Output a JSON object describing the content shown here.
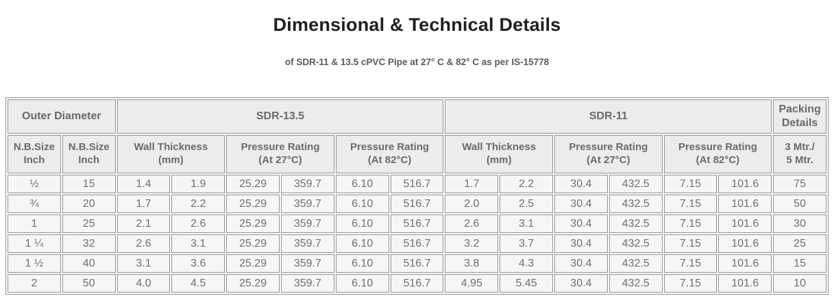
{
  "page": {
    "title": "Dimensional & Technical Details",
    "subtitle": "of SDR-11 & 13.5 cPVC Pipe at 27° C & 82° C as per IS-15778"
  },
  "colors": {
    "title_text": "#1f1f1f",
    "subtitle_text": "#595959",
    "header_bg": "#ececec",
    "cell_bg": "#f6f6f6",
    "header_text": "#6a6a6a",
    "cell_text": "#6f6f6f",
    "border": "#8f8f8f",
    "page_bg": "#ffffff"
  },
  "table": {
    "group_headers": [
      {
        "label": "Outer Diameter",
        "colspan": 2
      },
      {
        "label": "SDR-13.5",
        "colspan": 6
      },
      {
        "label": "SDR-11",
        "colspan": 6
      },
      {
        "label": "Packing\nDetails",
        "colspan": 1
      }
    ],
    "column_headers": [
      {
        "label": "N.B.Size\nInch",
        "colspan": 1
      },
      {
        "label": "N.B.Size\nInch",
        "colspan": 1
      },
      {
        "label": "Wall Thickness\n(mm)",
        "colspan": 2
      },
      {
        "label": "Pressure Rating\n(At 27°C)",
        "colspan": 2
      },
      {
        "label": "Pressure Rating\n(At 82°C)",
        "colspan": 2
      },
      {
        "label": "Wall Thickness\n(mm)",
        "colspan": 2
      },
      {
        "label": "Pressure Rating\n(At 27°C)",
        "colspan": 2
      },
      {
        "label": "Pressure Rating\n(At 82°C)",
        "colspan": 2
      },
      {
        "label": "3 Mtr./\n5 Mtr.",
        "colspan": 1
      }
    ],
    "rows": [
      [
        "½",
        "15",
        "1.4",
        "1.9",
        "25.29",
        "359.7",
        "6.10",
        "516.7",
        "1.7",
        "2.2",
        "30.4",
        "432.5",
        "7.15",
        "101.6",
        "75"
      ],
      [
        "¾",
        "20",
        "1.7",
        "2.2",
        "25.29",
        "359.7",
        "6.10",
        "516.7",
        "2.0",
        "2.5",
        "30.4",
        "432.5",
        "7.15",
        "101.6",
        "50"
      ],
      [
        "1",
        "25",
        "2.1",
        "2.6",
        "25.29",
        "359.7",
        "6.10",
        "516.7",
        "2.6",
        "3.1",
        "30.4",
        "432.5",
        "7.15",
        "101.6",
        "30"
      ],
      [
        "1 ¼",
        "32",
        "2.6",
        "3.1",
        "25.29",
        "359.7",
        "6.10",
        "516.7",
        "3.2",
        "3.7",
        "30.4",
        "432.5",
        "7.15",
        "101.6",
        "25"
      ],
      [
        "1 ½",
        "40",
        "3.1",
        "3.6",
        "25.29",
        "359.7",
        "6.10",
        "516.7",
        "3.8",
        "4.3",
        "30.4",
        "432.5",
        "7.15",
        "101.6",
        "15"
      ],
      [
        "2",
        "50",
        "4.0",
        "4.5",
        "25.29",
        "359.7",
        "6.10",
        "516.7",
        "4.95",
        "5.45",
        "30.4",
        "432.5",
        "7.15",
        "101.6",
        "10"
      ]
    ]
  }
}
